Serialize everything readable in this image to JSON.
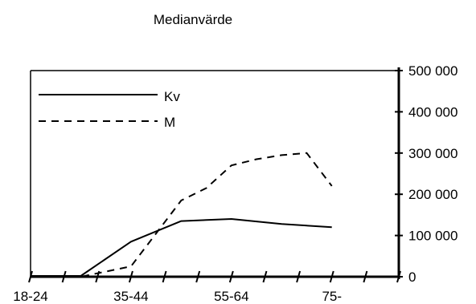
{
  "chart_data": {
    "type": "line",
    "title": "Medianvärde",
    "x_tick_labels": [
      "18-24",
      "35-44",
      "55-64",
      "75-"
    ],
    "x_positions": [
      0,
      1,
      2,
      3,
      4,
      5,
      6,
      7,
      8,
      9,
      10,
      11
    ],
    "x_tick_label_positions": [
      0,
      3,
      6,
      9
    ],
    "y_tick_labels": [
      "500 000",
      "400 000",
      "300 000",
      "200 000",
      "100 000",
      "0"
    ],
    "y_ticks": [
      500000,
      400000,
      300000,
      200000,
      100000,
      0
    ],
    "ylim": [
      0,
      500000
    ],
    "y_axis_side": "right",
    "grid": false,
    "legend_placement": "top-left",
    "series": [
      {
        "name": "Kv",
        "line_style": "solid",
        "color": "#000000",
        "x": [
          0,
          1.5,
          3,
          4.5,
          6,
          7.5,
          9
        ],
        "values": [
          2000,
          2000,
          85000,
          135000,
          140000,
          128000,
          120000
        ]
      },
      {
        "name": "M",
        "line_style": "dashed",
        "color": "#000000",
        "x": [
          0,
          1.5,
          3,
          4.5,
          5.25,
          6,
          6.75,
          7.5,
          8.25,
          9
        ],
        "values": [
          0,
          0,
          25000,
          185000,
          215000,
          270000,
          285000,
          295000,
          300000,
          220000
        ]
      }
    ]
  }
}
